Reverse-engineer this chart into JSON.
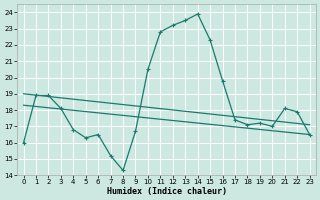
{
  "title": "",
  "xlabel": "Humidex (Indice chaleur)",
  "xlim": [
    -0.5,
    23.5
  ],
  "ylim": [
    14,
    24.5
  ],
  "yticks": [
    14,
    15,
    16,
    17,
    18,
    19,
    20,
    21,
    22,
    23,
    24
  ],
  "xticks": [
    0,
    1,
    2,
    3,
    4,
    5,
    6,
    7,
    8,
    9,
    10,
    11,
    12,
    13,
    14,
    15,
    16,
    17,
    18,
    19,
    20,
    21,
    22,
    23
  ],
  "bg_color": "#cce8e0",
  "grid_color": "#ffffff",
  "line_color": "#1a7a6e",
  "line1_x": [
    0,
    1,
    2,
    3,
    4,
    5,
    6,
    7,
    8,
    9,
    10,
    11,
    12,
    13,
    14,
    15,
    16,
    17,
    18,
    19,
    20,
    21,
    22,
    23
  ],
  "line1_y": [
    16.0,
    18.9,
    18.9,
    18.1,
    16.8,
    16.3,
    16.5,
    15.2,
    14.3,
    16.7,
    20.5,
    22.8,
    23.2,
    23.5,
    23.9,
    22.3,
    19.8,
    17.4,
    17.1,
    17.2,
    17.0,
    18.1,
    17.9,
    16.5
  ],
  "line2_x": [
    0,
    23
  ],
  "line2_y": [
    19.0,
    17.1
  ],
  "line3_x": [
    0,
    23
  ],
  "line3_y": [
    18.3,
    16.5
  ]
}
